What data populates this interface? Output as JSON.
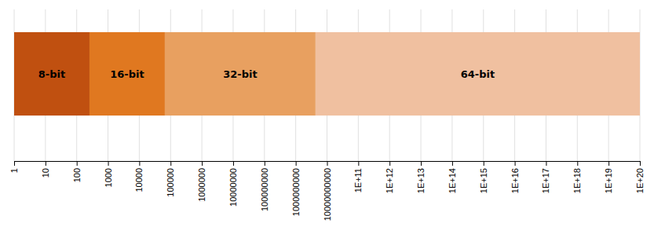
{
  "chart_data": {
    "type": "bar",
    "orientation": "horizontal",
    "log": "x",
    "grid": true,
    "categories": [
      "8-bit",
      "16-bit",
      "32-bit",
      "64-bit"
    ],
    "starts": [
      1,
      256,
      65536,
      4294967296
    ],
    "values": [
      256,
      65536,
      4294967296,
      1e+20
    ],
    "colors": [
      "#C05010",
      "#E07820",
      "#E8A060",
      "#F0C0A0"
    ],
    "xlim": [
      1,
      1e+20
    ],
    "xticks": [
      1,
      10,
      100,
      1000,
      10000,
      100000,
      1000000,
      10000000,
      100000000,
      1000000000,
      10000000000,
      {
        "value": 100000000000,
        "label": "1E+11"
      },
      {
        "value": 1000000000000,
        "label": "1E+12"
      },
      {
        "value": 10000000000000,
        "label": "1E+13"
      },
      {
        "value": 100000000000000,
        "label": "1E+14"
      },
      {
        "value": 1000000000000000,
        "label": "1E+15"
      },
      {
        "value": 10000000000000000,
        "label": "1E+16"
      },
      {
        "value": 100000000000000000,
        "label": "1E+17"
      },
      {
        "value": 1000000000000000000,
        "label": "1E+18"
      },
      {
        "value": 10000000000000000000,
        "label": "1E+19"
      },
      {
        "value": 1e+20,
        "label": "1E+20"
      }
    ]
  }
}
